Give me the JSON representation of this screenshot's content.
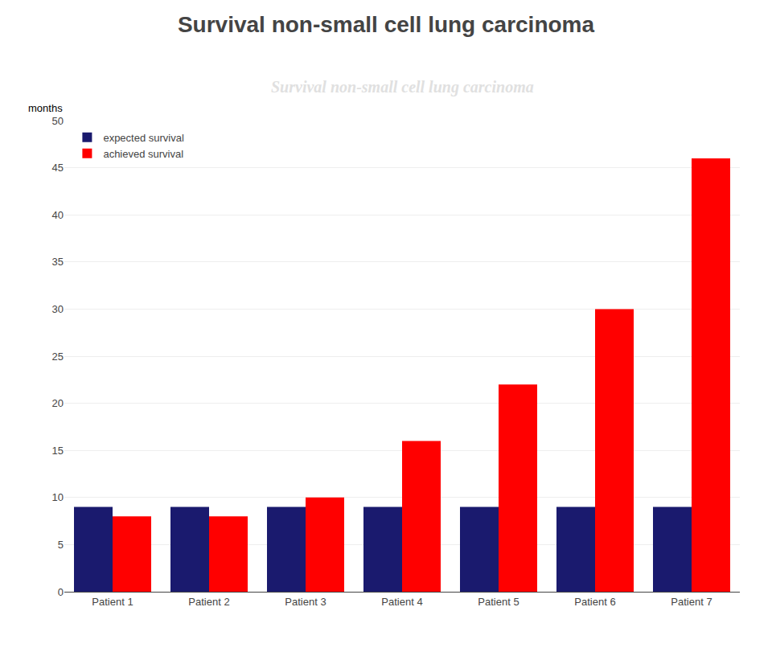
{
  "chart_data": {
    "type": "bar",
    "title": "Survival non-small cell lung carcinoma",
    "ylabel": "months",
    "annotations": [
      {
        "text": "Survival non-small cell lung carcinoma"
      }
    ],
    "categories": [
      "Patient 1",
      "Patient 2",
      "Patient 3",
      "Patient 4",
      "Patient 5",
      "Patient 6",
      "Patient 7"
    ],
    "series": [
      {
        "name": "expected survival",
        "color": "#1a1a6e",
        "values": [
          9,
          9,
          9,
          9,
          9,
          9,
          9
        ]
      },
      {
        "name": "achieved survival",
        "color": "#ff0000",
        "values": [
          8,
          8,
          10,
          16,
          22,
          30,
          46
        ]
      }
    ],
    "ylim": [
      0,
      50
    ],
    "yticks": [
      0,
      5,
      10,
      15,
      20,
      25,
      30,
      35,
      40,
      45,
      50
    ],
    "grid": true,
    "legend": "upper left"
  }
}
